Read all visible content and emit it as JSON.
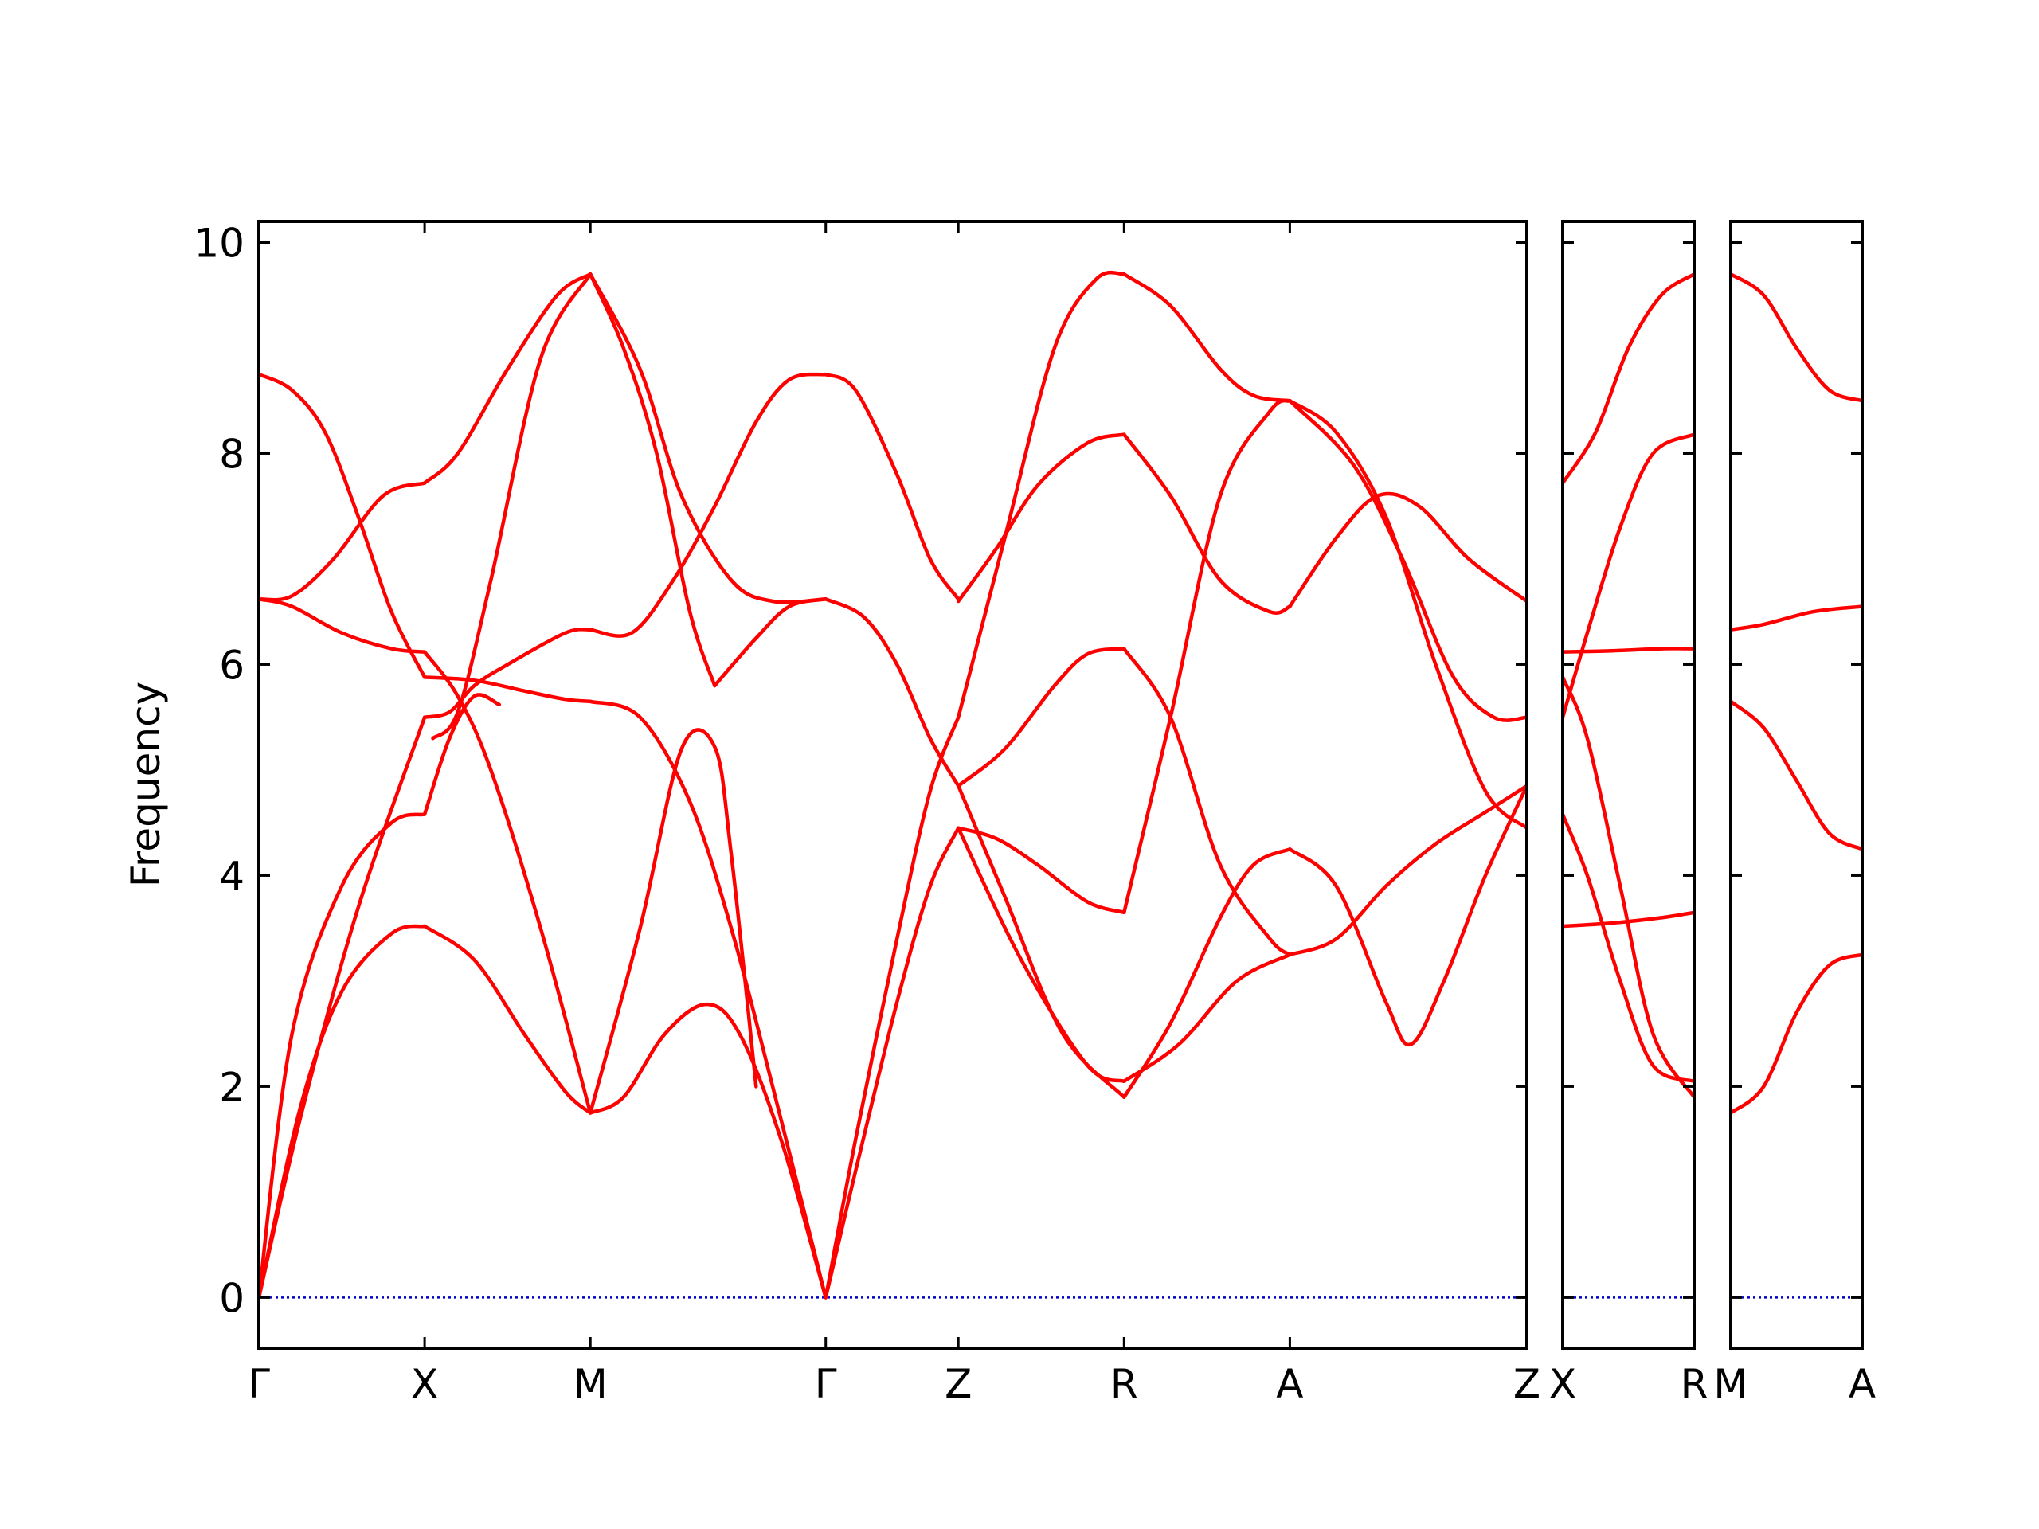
{
  "chart_data": {
    "type": "line",
    "title": "",
    "ylabel": "Frequency",
    "ylim": [
      -0.48,
      10.2
    ],
    "yticks": [
      0,
      2,
      4,
      6,
      8,
      10
    ],
    "grid": false,
    "band_color": "#ff0000",
    "zero_line_color": "#0000cc",
    "panels": [
      {
        "xlim": [
          0,
          7.65
        ],
        "xticks": [
          {
            "label": "Γ",
            "x": 0
          },
          {
            "label": "X",
            "x": 1
          },
          {
            "label": "M",
            "x": 2
          },
          {
            "label": "Γ",
            "x": 3.42
          },
          {
            "label": "Z",
            "x": 4.22
          },
          {
            "label": "R",
            "x": 5.22
          },
          {
            "label": "A",
            "x": 6.22
          },
          {
            "label": "Z",
            "x": 7.65
          }
        ],
        "series": [
          {
            "x": [
              0,
              0.25,
              0.5,
              0.8,
              1
            ],
            "y": [
              0,
              1.8,
              2.9,
              3.45,
              3.52
            ]
          },
          {
            "x": [
              1,
              1.3,
              1.6,
              1.85,
              2
            ],
            "y": [
              3.52,
              3.2,
              2.5,
              1.95,
              1.75
            ]
          },
          {
            "x": [
              2,
              2.2,
              2.45,
              2.7,
              2.9,
              3.15,
              3.42
            ],
            "y": [
              1.75,
              1.9,
              2.5,
              2.78,
              2.5,
              1.5,
              0
            ]
          },
          {
            "x": [
              0,
              0.2,
              0.5,
              0.8,
              1
            ],
            "y": [
              0,
              2.5,
              3.9,
              4.5,
              4.58
            ]
          },
          {
            "x": [
              1,
              1.15,
              1.3,
              1.45
            ],
            "y": [
              4.58,
              5.3,
              5.7,
              5.62
            ]
          },
          {
            "x": [
              0,
              0.25,
              0.6,
              1
            ],
            "y": [
              0,
              1.7,
              3.7,
              5.5
            ]
          },
          {
            "x": [
              1,
              1.15,
              1.3,
              1.5,
              1.85,
              2
            ],
            "y": [
              5.5,
              5.55,
              5.8,
              6.0,
              6.3,
              6.33
            ]
          },
          {
            "x": [
              2,
              2.25,
              2.5,
              2.75,
              3,
              3.2,
              3.42
            ],
            "y": [
              6.33,
              6.3,
              6.8,
              7.5,
              8.3,
              8.7,
              8.75
            ]
          },
          {
            "x": [
              0,
              0.2,
              0.4,
              0.6,
              0.8,
              1
            ],
            "y": [
              8.75,
              8.6,
              8.2,
              7.4,
              6.5,
              5.88
            ]
          },
          {
            "x": [
              1,
              1.3,
              1.6,
              1.85,
              2
            ],
            "y": [
              5.88,
              5.85,
              5.75,
              5.67,
              5.65
            ]
          },
          {
            "x": [
              2,
              2.3,
              2.6,
              2.85,
              3.1,
              3.42
            ],
            "y": [
              5.65,
              5.5,
              4.7,
              3.5,
              2.0,
              0
            ]
          },
          {
            "x": [
              0,
              0.2,
              0.5,
              0.8,
              1
            ],
            "y": [
              6.62,
              6.55,
              6.3,
              6.15,
              6.12
            ]
          },
          {
            "x": [
              1,
              1.2,
              1.4,
              1.7,
              2
            ],
            "y": [
              6.12,
              5.7,
              5.0,
              3.5,
              1.75
            ]
          },
          {
            "x": [
              2,
              2.3,
              2.55,
              2.75,
              2.85,
              3
            ],
            "y": [
              1.75,
              3.5,
              5.2,
              5.22,
              4.2,
              2.0
            ]
          },
          {
            "x": [
              0,
              0.2,
              0.45,
              0.75,
              1
            ],
            "y": [
              6.62,
              6.65,
              7.0,
              7.6,
              7.72
            ]
          },
          {
            "x": [
              1,
              1.2,
              1.5,
              1.8,
              2
            ],
            "y": [
              7.72,
              8.0,
              8.8,
              9.5,
              9.7
            ]
          },
          {
            "x": [
              2,
              2.3,
              2.55,
              2.85,
              3.1,
              3.42
            ],
            "y": [
              9.7,
              8.8,
              7.6,
              6.8,
              6.6,
              6.62
            ]
          },
          {
            "x": [
              1.05,
              1.2,
              1.4,
              1.7,
              2
            ],
            "y": [
              5.3,
              5.55,
              6.8,
              8.9,
              9.7
            ]
          },
          {
            "x": [
              2,
              2.2,
              2.4,
              2.6,
              2.75
            ],
            "y": [
              9.7,
              9.0,
              8.0,
              6.5,
              5.8
            ]
          },
          {
            "x": [
              2.75,
              3,
              3.2,
              3.42
            ],
            "y": [
              5.8,
              6.25,
              6.55,
              6.62
            ]
          },
          {
            "x": [
              3.42,
              3.6,
              3.85,
              4.05,
              4.22
            ],
            "y": [
              0,
              1.5,
              3.4,
              4.8,
              5.5
            ]
          },
          {
            "x": [
              4.22,
              4.5,
              4.8,
              5.05,
              5.22
            ],
            "y": [
              5.5,
              7.2,
              9.0,
              9.65,
              9.7
            ]
          },
          {
            "x": [
              5.22,
              5.5,
              5.8,
              6.0,
              6.22
            ],
            "y": [
              9.7,
              9.4,
              8.8,
              8.55,
              8.5
            ]
          },
          {
            "x": [
              3.42,
              3.6,
              3.85,
              4.05,
              4.22
            ],
            "y": [
              0,
              1.2,
              2.8,
              3.9,
              4.45
            ]
          },
          {
            "x": [
              4.22,
              4.45,
              4.7,
              5,
              5.22
            ],
            "y": [
              4.45,
              4.35,
              4.1,
              3.75,
              3.65
            ]
          },
          {
            "x": [
              5.22,
              5.5,
              5.8,
              6.1,
              6.22
            ],
            "y": [
              3.65,
              5.5,
              7.6,
              8.4,
              8.5
            ]
          },
          {
            "x": [
              6.22,
              6.5,
              6.8,
              7.1,
              7.4,
              7.65
            ],
            "y": [
              8.5,
              8.2,
              7.4,
              6.0,
              4.8,
              4.45
            ]
          },
          {
            "x": [
              3.42,
              3.65,
              3.85,
              4.05,
              4.22
            ],
            "y": [
              6.62,
              6.45,
              6.0,
              5.3,
              4.85
            ]
          },
          {
            "x": [
              4.22,
              4.5,
              4.8,
              5,
              5.22
            ],
            "y": [
              4.85,
              5.2,
              5.8,
              6.1,
              6.15
            ]
          },
          {
            "x": [
              5.22,
              5.5,
              5.8,
              6.1,
              6.22
            ],
            "y": [
              6.15,
              5.5,
              4.1,
              3.4,
              3.25
            ]
          },
          {
            "x": [
              6.22,
              6.5,
              6.8,
              7.1,
              7.4,
              7.65
            ],
            "y": [
              3.25,
              3.4,
              3.9,
              4.3,
              4.6,
              4.85
            ]
          },
          {
            "x": [
              4.22,
              4.45,
              4.7,
              5,
              5.22
            ],
            "y": [
              6.6,
              7.1,
              7.7,
              8.1,
              8.18
            ]
          },
          {
            "x": [
              5.22,
              5.5,
              5.8,
              6.1,
              6.22
            ],
            "y": [
              8.18,
              7.6,
              6.8,
              6.5,
              6.55
            ]
          },
          {
            "x": [
              6.22,
              6.5,
              6.75,
              7.0,
              7.3,
              7.65
            ],
            "y": [
              6.55,
              7.2,
              7.6,
              7.5,
              7.0,
              6.6
            ]
          },
          {
            "x": [
              3.42,
              3.6,
              3.85,
              4.05,
              4.22
            ],
            "y": [
              8.75,
              8.6,
              7.8,
              7.0,
              6.62
            ]
          },
          {
            "x": [
              4.22,
              4.6,
              5,
              5.22
            ],
            "y": [
              4.45,
              3.2,
              2.2,
              2.05
            ]
          },
          {
            "x": [
              5.22,
              5.55,
              5.9,
              6.22
            ],
            "y": [
              2.05,
              2.4,
              3.0,
              3.25
            ]
          },
          {
            "x": [
              4.22,
              4.5,
              4.85,
              5.22
            ],
            "y": [
              4.85,
              3.8,
              2.5,
              1.9
            ]
          },
          {
            "x": [
              5.22,
              5.5,
              5.8,
              6.0,
              6.22
            ],
            "y": [
              1.9,
              2.6,
              3.6,
              4.1,
              4.25
            ]
          },
          {
            "x": [
              6.22,
              6.5,
              6.8,
              6.95,
              7.15,
              7.4,
              7.65
            ],
            "y": [
              4.25,
              3.9,
              2.8,
              2.4,
              3.0,
              4.0,
              4.85
            ]
          },
          {
            "x": [
              6.22,
              6.6,
              6.9,
              7.2,
              7.45,
              7.65
            ],
            "y": [
              8.5,
              7.9,
              7.0,
              5.9,
              5.5,
              5.5
            ]
          }
        ]
      },
      {
        "xlim": [
          0,
          0.8
        ],
        "xticks": [
          {
            "label": "X",
            "x": 0
          },
          {
            "label": "R",
            "x": 0.8
          }
        ],
        "series": [
          {
            "x": [
              0,
              0.2,
              0.4,
              0.6,
              0.8
            ],
            "y": [
              7.72,
              8.2,
              9.0,
              9.5,
              9.7
            ]
          },
          {
            "x": [
              0,
              0.15,
              0.35,
              0.55,
              0.8
            ],
            "y": [
              5.5,
              6.3,
              7.3,
              8.0,
              8.18
            ]
          },
          {
            "x": [
              0,
              0.3,
              0.6,
              0.8
            ],
            "y": [
              6.12,
              6.13,
              6.15,
              6.15
            ]
          },
          {
            "x": [
              0,
              0.15,
              0.35,
              0.55,
              0.8
            ],
            "y": [
              5.88,
              5.3,
              3.9,
              2.5,
              1.9
            ]
          },
          {
            "x": [
              0,
              0.15,
              0.35,
              0.55,
              0.8
            ],
            "y": [
              4.58,
              4.0,
              3.0,
              2.2,
              2.05
            ]
          },
          {
            "x": [
              0,
              0.3,
              0.6,
              0.8
            ],
            "y": [
              3.52,
              3.55,
              3.6,
              3.65
            ]
          }
        ]
      },
      {
        "xlim": [
          0,
          0.8
        ],
        "xticks": [
          {
            "label": "M",
            "x": 0
          },
          {
            "label": "A",
            "x": 0.8
          }
        ],
        "series": [
          {
            "x": [
              0,
              0.2,
              0.4,
              0.6,
              0.8
            ],
            "y": [
              9.7,
              9.5,
              9.0,
              8.6,
              8.5
            ]
          },
          {
            "x": [
              0,
              0.2,
              0.5,
              0.8
            ],
            "y": [
              6.33,
              6.38,
              6.5,
              6.55
            ]
          },
          {
            "x": [
              0,
              0.2,
              0.4,
              0.6,
              0.8
            ],
            "y": [
              5.65,
              5.4,
              4.9,
              4.4,
              4.25
            ]
          },
          {
            "x": [
              0,
              0.2,
              0.4,
              0.6,
              0.8
            ],
            "y": [
              1.75,
              2.0,
              2.7,
              3.15,
              3.25
            ]
          }
        ]
      }
    ]
  }
}
